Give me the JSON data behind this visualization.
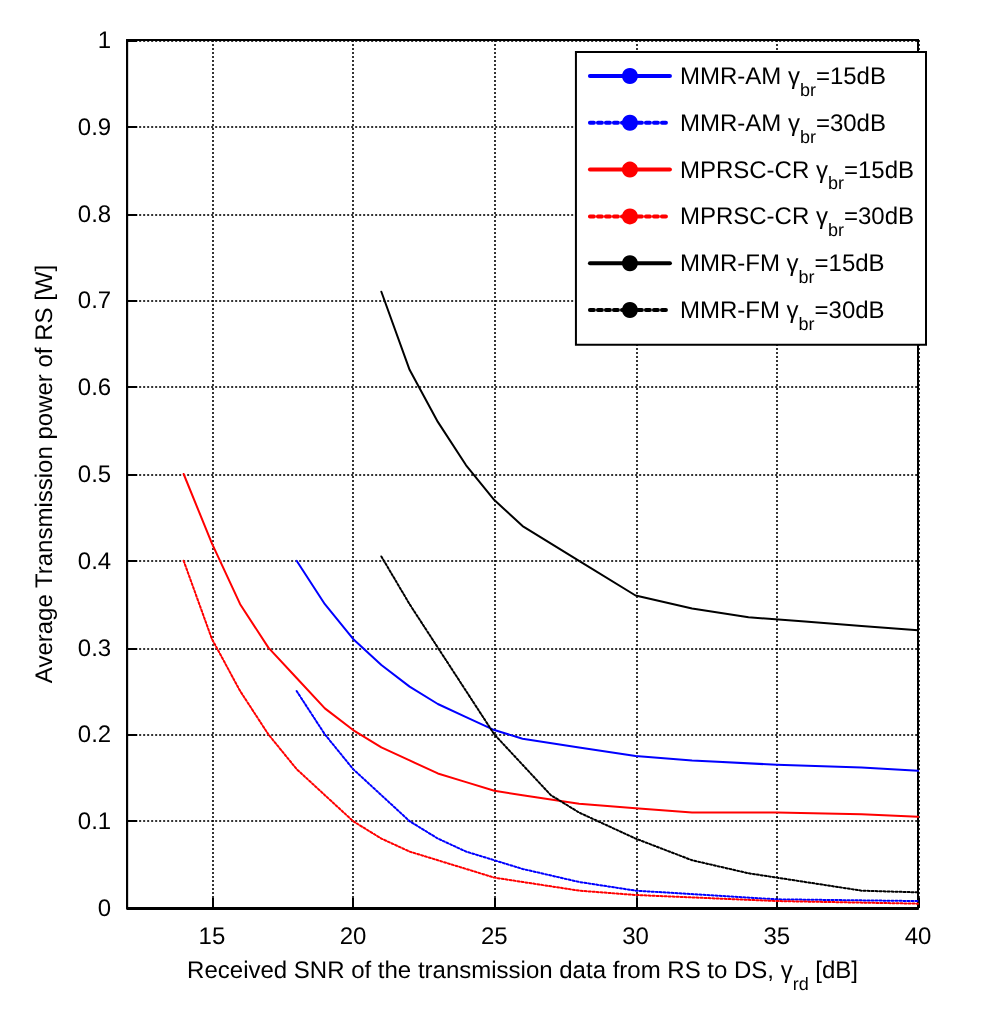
{
  "chart_data": {
    "type": "line",
    "xlabel": "Received SNR of the transmission data from RS to DS, γ$_{rd}$ [dB]",
    "ylabel": "Average Transmission power of RS [W]",
    "xlim": [
      12,
      40
    ],
    "xticks": [
      15,
      20,
      25,
      30,
      35,
      40
    ],
    "ylim": [
      0,
      1
    ],
    "yticks": [
      0,
      0.1,
      0.2,
      0.3,
      0.4,
      0.5,
      0.6,
      0.7,
      0.8,
      0.9,
      1
    ],
    "grid": true,
    "legend": "top right",
    "marker": "none",
    "series": [
      {
        "name": "MMR-AM γ$_{br}$=15dB",
        "color": "#0000ff",
        "line_style": "solid",
        "x": [
          18,
          19,
          20,
          21,
          22,
          23,
          24,
          25,
          26,
          28,
          30,
          32,
          35,
          38,
          40
        ],
        "values": [
          0.4,
          0.35,
          0.31,
          0.28,
          0.255,
          0.235,
          0.22,
          0.205,
          0.195,
          0.185,
          0.175,
          0.17,
          0.165,
          0.162,
          0.158
        ]
      },
      {
        "name": "MMR-AM γ$_{br}$=30dB",
        "color": "#0000ff",
        "line_style": "dotted",
        "x": [
          18,
          19,
          20,
          21,
          22,
          23,
          24,
          25,
          26,
          28,
          30,
          35,
          40
        ],
        "values": [
          0.25,
          0.2,
          0.16,
          0.13,
          0.1,
          0.08,
          0.065,
          0.055,
          0.045,
          0.03,
          0.02,
          0.01,
          0.008
        ]
      },
      {
        "name": "MPRSC-CR γ$_{br}$=15dB",
        "color": "#ff0000",
        "line_style": "solid",
        "x": [
          14,
          15,
          16,
          17,
          18,
          19,
          20,
          21,
          22,
          23,
          24,
          25,
          26,
          28,
          30,
          32,
          35,
          38,
          40
        ],
        "values": [
          0.5,
          0.42,
          0.35,
          0.3,
          0.265,
          0.23,
          0.205,
          0.185,
          0.17,
          0.155,
          0.145,
          0.135,
          0.13,
          0.12,
          0.115,
          0.11,
          0.11,
          0.108,
          0.105
        ]
      },
      {
        "name": "MPRSC-CR γ$_{br}$=30dB",
        "color": "#ff0000",
        "line_style": "dotted",
        "x": [
          14,
          15,
          16,
          17,
          18,
          19,
          20,
          21,
          22,
          23,
          24,
          25,
          26,
          28,
          30,
          35,
          40
        ],
        "values": [
          0.4,
          0.31,
          0.25,
          0.2,
          0.16,
          0.13,
          0.1,
          0.08,
          0.065,
          0.055,
          0.045,
          0.035,
          0.03,
          0.02,
          0.015,
          0.008,
          0.005
        ]
      },
      {
        "name": "MMR-FM γ$_{br}$=15dB",
        "color": "#000000",
        "line_style": "solid",
        "x": [
          21,
          22,
          23,
          24,
          25,
          26,
          28,
          30,
          32,
          34,
          36,
          38,
          40
        ],
        "values": [
          0.71,
          0.62,
          0.56,
          0.51,
          0.47,
          0.44,
          0.4,
          0.36,
          0.345,
          0.335,
          0.33,
          0.325,
          0.32
        ]
      },
      {
        "name": "MMR-FM γ$_{br}$=30dB",
        "color": "#000000",
        "line_style": "dotted",
        "x": [
          21,
          22,
          23,
          24,
          25,
          26,
          27,
          28,
          30,
          32,
          34,
          36,
          38,
          40
        ],
        "values": [
          0.405,
          0.35,
          0.3,
          0.25,
          0.2,
          0.165,
          0.13,
          0.11,
          0.08,
          0.055,
          0.04,
          0.03,
          0.02,
          0.018
        ]
      }
    ]
  }
}
